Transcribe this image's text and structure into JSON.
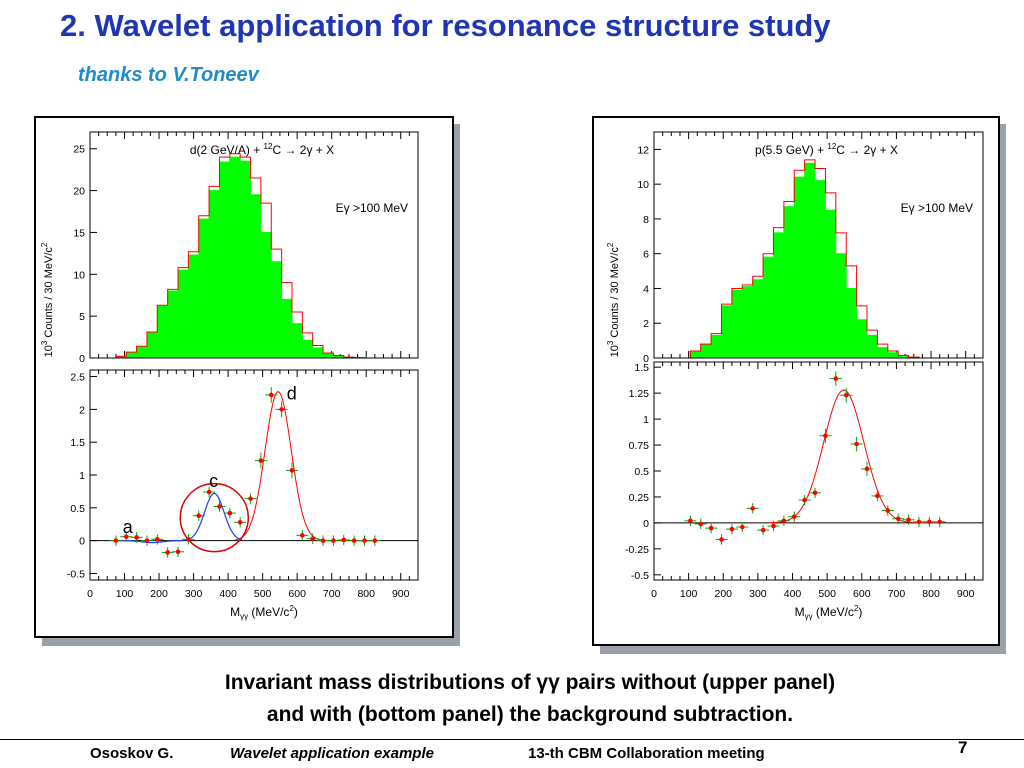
{
  "slide": {
    "title": "2. Wavelet application for resonance structure study",
    "subtitle": "thanks to V.Toneev",
    "caption_line1": "Invariant mass distributions of γγ pairs without (upper panel)",
    "caption_line2": "and with (bottom panel) the background subtraction.",
    "footer_author": "Ososkov G.",
    "footer_topic": "Wavelet application example",
    "footer_meeting": "13-th CBM Collaboration meeting",
    "page_number": "7"
  },
  "colors": {
    "title": "#1f35b5",
    "subtitle": "#1e8cc8",
    "hist_fill": "#00ff00",
    "hist_outline": "#ff0000",
    "fit_curve": "#ff0000",
    "wavelet_curve": "#1a3cff",
    "data_point": "#ff0000",
    "error_bar": "#00aa00"
  },
  "chart_data": [
    {
      "id": "left-top",
      "type": "bar",
      "title": "d(2 GeV/A) + 12C → 2γ + X",
      "annotation": "Eγ >100 MeV",
      "ylabel": "10³ Counts / 30 MeV/c²",
      "ylim": [
        0,
        27
      ],
      "yticks": [
        0,
        5,
        10,
        15,
        20,
        25
      ],
      "xlim": [
        0,
        950
      ],
      "bin_width": 30,
      "bin_start": 75,
      "series": [
        {
          "name": "fill",
          "values": [
            0.2,
            0.6,
            1.3,
            3.0,
            6.2,
            8.0,
            10.5,
            12.3,
            16.6,
            20.0,
            23.4,
            24.0,
            23.5,
            19.5,
            15.0,
            11.5,
            7.0,
            4.1,
            2.1,
            1.2,
            0.5,
            0.2,
            0.1,
            0.05
          ]
        },
        {
          "name": "outline",
          "values": [
            0.2,
            0.7,
            1.4,
            3.1,
            6.3,
            8.2,
            10.8,
            12.7,
            17.0,
            20.5,
            24.0,
            24.4,
            24.0,
            21.5,
            18.5,
            13.0,
            9.0,
            5.5,
            3.0,
            1.5,
            0.6,
            0.3,
            0.1,
            0.05
          ]
        }
      ]
    },
    {
      "id": "left-bottom",
      "type": "scatter",
      "ylim": [
        -0.6,
        2.6
      ],
      "yticks": [
        -0.5,
        0,
        0.5,
        1,
        1.5,
        2,
        2.5
      ],
      "xlim": [
        0,
        950
      ],
      "xticks": [
        0,
        100,
        200,
        300,
        400,
        500,
        600,
        700,
        800,
        900
      ],
      "xlabel": "Mγγ (MeV/c²)",
      "labels": [
        "a",
        "c",
        "d"
      ],
      "points": [
        {
          "x": 75,
          "y": 0.0
        },
        {
          "x": 105,
          "y": 0.06
        },
        {
          "x": 135,
          "y": 0.05
        },
        {
          "x": 165,
          "y": 0.0
        },
        {
          "x": 195,
          "y": 0.02
        },
        {
          "x": 225,
          "y": -0.18
        },
        {
          "x": 255,
          "y": -0.17
        },
        {
          "x": 285,
          "y": 0.02
        },
        {
          "x": 315,
          "y": 0.38
        },
        {
          "x": 345,
          "y": 0.74
        },
        {
          "x": 375,
          "y": 0.52
        },
        {
          "x": 405,
          "y": 0.42
        },
        {
          "x": 435,
          "y": 0.28
        },
        {
          "x": 465,
          "y": 0.64
        },
        {
          "x": 495,
          "y": 1.22
        },
        {
          "x": 525,
          "y": 2.22
        },
        {
          "x": 555,
          "y": 2.0
        },
        {
          "x": 585,
          "y": 1.07
        },
        {
          "x": 615,
          "y": 0.08
        },
        {
          "x": 645,
          "y": 0.03
        },
        {
          "x": 675,
          "y": 0.0
        },
        {
          "x": 705,
          "y": 0.0
        },
        {
          "x": 735,
          "y": 0.01
        },
        {
          "x": 765,
          "y": 0.0
        },
        {
          "x": 795,
          "y": 0.0
        },
        {
          "x": 825,
          "y": 0.0
        }
      ]
    },
    {
      "id": "right-top",
      "type": "bar",
      "title": "p(5.5 GeV) + 12C → 2γ + X",
      "annotation": "Eγ >100 MeV",
      "ylabel": "10³ Counts / 30 MeV/c²",
      "ylim": [
        0,
        13
      ],
      "yticks": [
        0,
        2,
        4,
        6,
        8,
        10,
        12
      ],
      "xlim": [
        0,
        950
      ],
      "bin_width": 30,
      "bin_start": 105,
      "series": [
        {
          "name": "fill",
          "values": [
            0.4,
            0.8,
            1.3,
            3.0,
            3.9,
            4.1,
            4.5,
            5.8,
            7.2,
            8.7,
            10.4,
            11.2,
            10.2,
            8.5,
            6.0,
            4.0,
            2.2,
            1.3,
            0.6,
            0.3,
            0.1,
            0.05
          ]
        },
        {
          "name": "outline",
          "values": [
            0.4,
            0.8,
            1.4,
            3.1,
            4.0,
            4.2,
            4.7,
            6.0,
            7.5,
            9.0,
            10.8,
            11.4,
            10.9,
            9.5,
            7.2,
            5.3,
            3.0,
            1.6,
            0.8,
            0.4,
            0.15,
            0.05
          ]
        }
      ]
    },
    {
      "id": "right-bottom",
      "type": "scatter",
      "ylim": [
        -0.55,
        1.55
      ],
      "yticks": [
        -0.5,
        -0.25,
        0,
        0.25,
        0.5,
        0.75,
        1,
        1.25,
        1.5
      ],
      "xlim": [
        0,
        950
      ],
      "xticks": [
        0,
        100,
        200,
        300,
        400,
        500,
        600,
        700,
        800,
        900
      ],
      "xlabel": "Mγγ (MeV/c²)",
      "points": [
        {
          "x": 105,
          "y": 0.02
        },
        {
          "x": 135,
          "y": -0.01
        },
        {
          "x": 165,
          "y": -0.05
        },
        {
          "x": 195,
          "y": -0.16
        },
        {
          "x": 225,
          "y": -0.06
        },
        {
          "x": 255,
          "y": -0.04
        },
        {
          "x": 285,
          "y": 0.14
        },
        {
          "x": 315,
          "y": -0.07
        },
        {
          "x": 345,
          "y": -0.03
        },
        {
          "x": 375,
          "y": 0.02
        },
        {
          "x": 405,
          "y": 0.06
        },
        {
          "x": 435,
          "y": 0.22
        },
        {
          "x": 465,
          "y": 0.29
        },
        {
          "x": 495,
          "y": 0.84
        },
        {
          "x": 525,
          "y": 1.39
        },
        {
          "x": 555,
          "y": 1.23
        },
        {
          "x": 585,
          "y": 0.76
        },
        {
          "x": 615,
          "y": 0.52
        },
        {
          "x": 645,
          "y": 0.26
        },
        {
          "x": 675,
          "y": 0.12
        },
        {
          "x": 705,
          "y": 0.04
        },
        {
          "x": 735,
          "y": 0.03
        },
        {
          "x": 765,
          "y": 0.01
        },
        {
          "x": 795,
          "y": 0.01
        },
        {
          "x": 825,
          "y": 0.01
        }
      ]
    }
  ]
}
